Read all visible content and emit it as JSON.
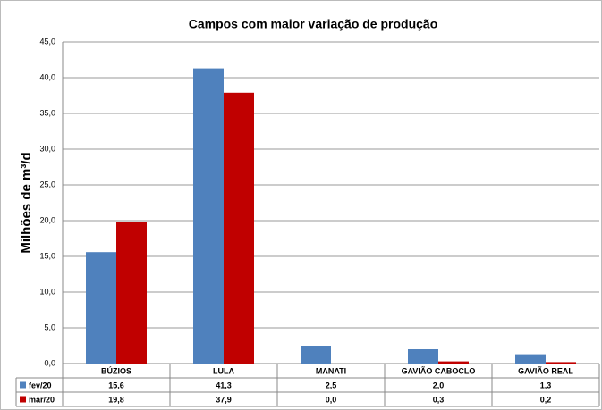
{
  "chart_data": {
    "type": "bar",
    "title": "Campos com maior variação de produção",
    "y_label": "Milhões de m³/d",
    "categories": [
      "BÚZIOS",
      "LULA",
      "MANATI",
      "GAVIÃO CABOCLO",
      "GAVIÃO REAL"
    ],
    "series": [
      {
        "name": "fev/20",
        "color": "#4f81bd",
        "values": [
          15.6,
          41.3,
          2.5,
          2.0,
          1.3
        ],
        "value_labels": [
          "15,6",
          "41,3",
          "2,5",
          "2,0",
          "1,3"
        ]
      },
      {
        "name": "mar/20",
        "color": "#c00000",
        "values": [
          19.8,
          37.9,
          0.0,
          0.3,
          0.2
        ],
        "value_labels": [
          "19,8",
          "37,9",
          "0,0",
          "0,3",
          "0,2"
        ]
      }
    ],
    "ylim": [
      0,
      45
    ],
    "yticks": [
      {
        "value": 0,
        "label": "0,0"
      },
      {
        "value": 5,
        "label": "5,0"
      },
      {
        "value": 10,
        "label": "10,0"
      },
      {
        "value": 15,
        "label": "15,0"
      },
      {
        "value": 20,
        "label": "20,0"
      },
      {
        "value": 25,
        "label": "25,0"
      },
      {
        "value": 30,
        "label": "30,0"
      },
      {
        "value": 35,
        "label": "35,0"
      },
      {
        "value": 40,
        "label": "40,0"
      },
      {
        "value": 45,
        "label": "45,0"
      }
    ],
    "grid": true
  }
}
